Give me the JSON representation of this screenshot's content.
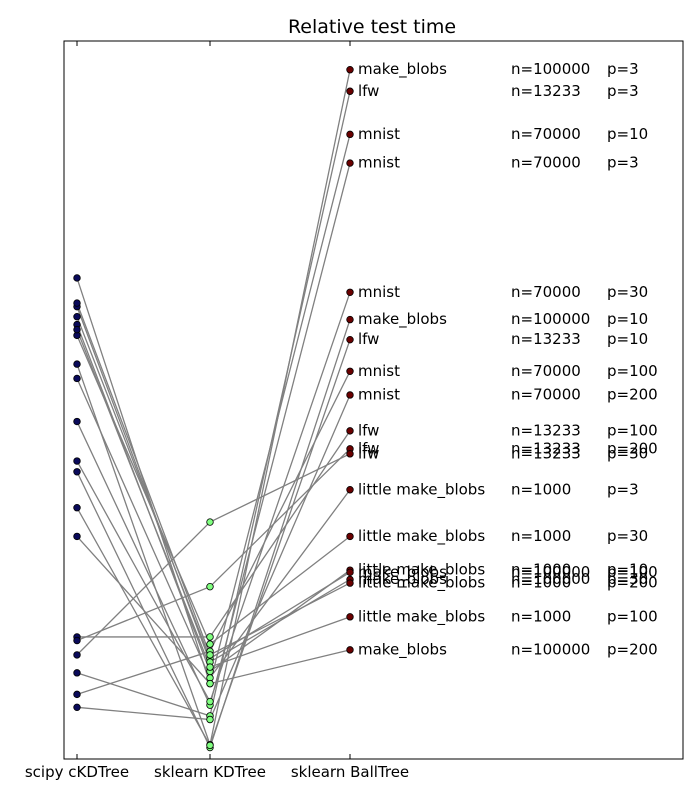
{
  "chart_data": {
    "type": "line",
    "title": "Relative test time",
    "xlabel": "",
    "ylabel": "",
    "categories": [
      "scipy cKDTree",
      "sklearn KDTree",
      "sklearn BallTree"
    ],
    "ylim": [
      0,
      1
    ],
    "grid": false,
    "legend": "none",
    "colors": {
      "line": "#808080",
      "scipy_marker": "#0a0a5a",
      "kdtree_marker": "#80ff80",
      "balltree_marker": "#6a0000"
    },
    "rows": [
      {
        "name": "make_blobs",
        "n": "n=100000",
        "p": "p=3",
        "values": [
          0.55,
          0.02,
          0.96
        ]
      },
      {
        "name": "lfw",
        "n": "n=13233",
        "p": "p=3",
        "values": [
          0.12,
          0.06,
          0.93
        ]
      },
      {
        "name": "mnist",
        "n": "n=70000",
        "p": "p=10",
        "values": [
          0.31,
          0.105,
          0.87
        ]
      },
      {
        "name": "mnist",
        "n": "n=70000",
        "p": "p=3",
        "values": [
          0.47,
          0.075,
          0.83
        ]
      },
      {
        "name": "mnist",
        "n": "n=70000",
        "p": "p=30",
        "values": [
          0.415,
          0.08,
          0.65
        ]
      },
      {
        "name": "make_blobs",
        "n": "n=100000",
        "p": "p=10",
        "values": [
          0.4,
          0.016,
          0.612
        ]
      },
      {
        "name": "lfw",
        "n": "n=13233",
        "p": "p=10",
        "values": [
          0.35,
          0.019,
          0.584
        ]
      },
      {
        "name": "mnist",
        "n": "n=70000",
        "p": "p=100",
        "values": [
          0.09,
          0.15,
          0.54
        ]
      },
      {
        "name": "mnist",
        "n": "n=70000",
        "p": "p=200",
        "values": [
          0.072,
          0.055,
          0.507
        ]
      },
      {
        "name": "lfw",
        "n": "n=13233",
        "p": "p=100",
        "values": [
          0.17,
          0.17,
          0.457
        ]
      },
      {
        "name": "lfw",
        "n": "n=13233",
        "p": "p=200",
        "values": [
          0.165,
          0.24,
          0.432
        ]
      },
      {
        "name": "lfw",
        "n": "n=13233",
        "p": "p=30",
        "values": [
          0.145,
          0.33,
          0.425
        ]
      },
      {
        "name": "little make_blobs",
        "n": "n=1000",
        "p": "p=3",
        "values": [
          0.53,
          0.113,
          0.375
        ]
      },
      {
        "name": "little make_blobs",
        "n": "n=1000",
        "p": "p=30",
        "values": [
          0.59,
          0.16,
          0.31
        ]
      },
      {
        "name": "little make_blobs",
        "n": "n=1000",
        "p": "p=10",
        "values": [
          0.605,
          0.122,
          0.263
        ]
      },
      {
        "name": "make_blobs",
        "n": "n=100000",
        "p": "p=100",
        "values": [
          0.616,
          0.14,
          0.26
        ]
      },
      {
        "name": "make_blobs",
        "n": "n=100000",
        "p": "p=30",
        "values": [
          0.63,
          0.135,
          0.25
        ]
      },
      {
        "name": "little make_blobs",
        "n": "n=1000",
        "p": "p=200",
        "values": [
          0.635,
          0.145,
          0.245
        ]
      },
      {
        "name": "little make_blobs",
        "n": "n=1000",
        "p": "p=100",
        "values": [
          0.598,
          0.128,
          0.198
        ]
      },
      {
        "name": "make_blobs",
        "n": "n=100000",
        "p": "p=200",
        "values": [
          0.67,
          0.105,
          0.152
        ]
      }
    ]
  }
}
